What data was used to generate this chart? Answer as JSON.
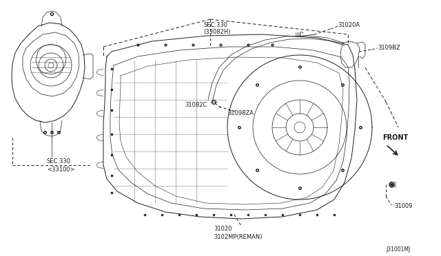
{
  "bg_color": "#ffffff",
  "line_color": "#1a1a1a",
  "footer": "J31001MJ",
  "fig_width": 6.4,
  "fig_height": 3.72,
  "dpi": 100,
  "labels": {
    "sec330_top_line1": "SEC.330",
    "sec330_top_line2": "(33082H)",
    "sec330_bot_line1": "SEC.330",
    "sec330_bot_line2": "<33100>",
    "label_31020A": "31020A",
    "label_3109BZ": "3109BZ",
    "label_31082C": "31082C",
    "label_31098ZA": "31098ZA",
    "label_31020_l1": "31020",
    "label_31020_l2": "3102MP(REMAN)",
    "label_31009": "31009",
    "label_front": "FRONT"
  },
  "font_size": 6.0,
  "lw_main": 0.7,
  "lw_thin": 0.5,
  "lw_detail": 0.4
}
